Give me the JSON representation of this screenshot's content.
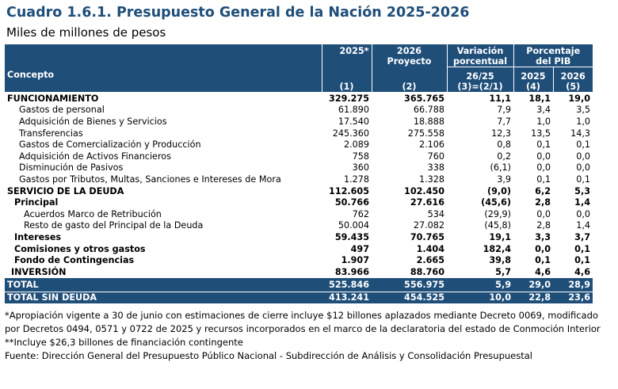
{
  "title": "Cuadro 1.6.1. Presupuesto General de la Nación 2025-2026",
  "subtitle": "Miles de millones de pesos",
  "header": {
    "concepto": "Concepto",
    "col2025": "2025*",
    "col2026a": "2026",
    "col2026b": "Proyecto",
    "var_a": "Variación",
    "var_b": "porcentual",
    "pct_a": "Porcentaje",
    "pct_b": "del PIB",
    "var_sub": "26/25",
    "pct2025": "2025",
    "pct2026": "2026",
    "n1": "(1)",
    "n2": "(2)",
    "n3": "(3)=(2/1)",
    "n4": "(4)",
    "n5": "(5)"
  },
  "rows": [
    {
      "label": "FUNCIONAMIENTO",
      "v2025": "329.275",
      "v2026": "365.765",
      "var": "11,1",
      "p2025": "18,1",
      "p2026": "19,0"
    },
    {
      "label": "Gastos de personal",
      "v2025": "61.890",
      "v2026": "66.788",
      "var": "7,9",
      "p2025": "3,4",
      "p2026": "3,5"
    },
    {
      "label": "Adquisición de Bienes y Servicios",
      "v2025": "17.540",
      "v2026": "18.888",
      "var": "7,7",
      "p2025": "1,0",
      "p2026": "1,0"
    },
    {
      "label": "Transferencias",
      "v2025": "245.360",
      "v2026": "275.558",
      "var": "12,3",
      "p2025": "13,5",
      "p2026": "14,3"
    },
    {
      "label": "Gastos de Comercialización y Producción",
      "v2025": "2.089",
      "v2026": "2.106",
      "var": "0,8",
      "p2025": "0,1",
      "p2026": "0,1"
    },
    {
      "label": "Adquisición de Activos Financieros",
      "v2025": "758",
      "v2026": "760",
      "var": "0,2",
      "p2025": "0,0",
      "p2026": "0,0"
    },
    {
      "label": "Disminución de Pasivos",
      "v2025": "360",
      "v2026": "338",
      "var": "(6,1)",
      "p2025": "0,0",
      "p2026": "0,0"
    },
    {
      "label": "Gastos por Tributos, Multas, Sanciones e Intereses de Mora",
      "v2025": "1.278",
      "v2026": "1.328",
      "var": "3,9",
      "p2025": "0,1",
      "p2026": "0,1"
    },
    {
      "label": "SERVICIO DE LA DEUDA",
      "v2025": "112.605",
      "v2026": "102.450",
      "var": "(9,0)",
      "p2025": "6,2",
      "p2026": "5,3"
    },
    {
      "label": "Principal",
      "v2025": "50.766",
      "v2026": "27.616",
      "var": "(45,6)",
      "p2025": "2,8",
      "p2026": "1,4"
    },
    {
      "label": "Acuerdos Marco de Retribución",
      "v2025": "762",
      "v2026": "534",
      "var": "(29,9)",
      "p2025": "0,0",
      "p2026": "0,0"
    },
    {
      "label": "Resto de gasto del Principal de la Deuda",
      "v2025": "50.004",
      "v2026": "27.082",
      "var": "(45,8)",
      "p2025": "2,8",
      "p2026": "1,4"
    },
    {
      "label": "Intereses",
      "v2025": "59.435",
      "v2026": "70.765",
      "var": "19,1",
      "p2025": "3,3",
      "p2026": "3,7"
    },
    {
      "label": "Comisiones y otros gastos",
      "v2025": "497",
      "v2026": "1.404",
      "var": "182,4",
      "p2025": "0,0",
      "p2026": "0,1"
    },
    {
      "label": "Fondo de Contingencias",
      "v2025": "1.907",
      "v2026": "2.665",
      "var": "39,8",
      "p2025": "0,1",
      "p2026": "0,1"
    },
    {
      "label": "INVERSIÓN",
      "v2025": "83.966",
      "v2026": "88.760",
      "var": "5,7",
      "p2025": "4,6",
      "p2026": "4,6"
    },
    {
      "label": "TOTAL",
      "v2025": "525.846",
      "v2026": "556.975",
      "var": "5,9",
      "p2025": "29,0",
      "p2026": "28,9"
    },
    {
      "label": "TOTAL SIN DEUDA",
      "v2025": "413.241",
      "v2026": "454.525",
      "var": "10,0",
      "p2025": "22,8",
      "p2026": "23,6"
    }
  ],
  "notes": [
    "*Apropiación vigente a 30 de junio con estimaciones de cierre incluye $12 billones aplazados mediante Decreto 0069, modificado por Decretos 0494, 0571 y 0722 de 2025 y recursos incorporados en el marco de la declaratoria del estado de Conmoción Interior",
    "**Incluye $26,3 billones de financiación contingente",
    "Fuente: Dirección General del Presupuesto Público Nacional - Subdirección de Análisis y Consolidación Presupuestal"
  ],
  "colors": {
    "header_bg": "#1f4e79",
    "title": "#1f4e79",
    "header_text": "#ffffff"
  }
}
